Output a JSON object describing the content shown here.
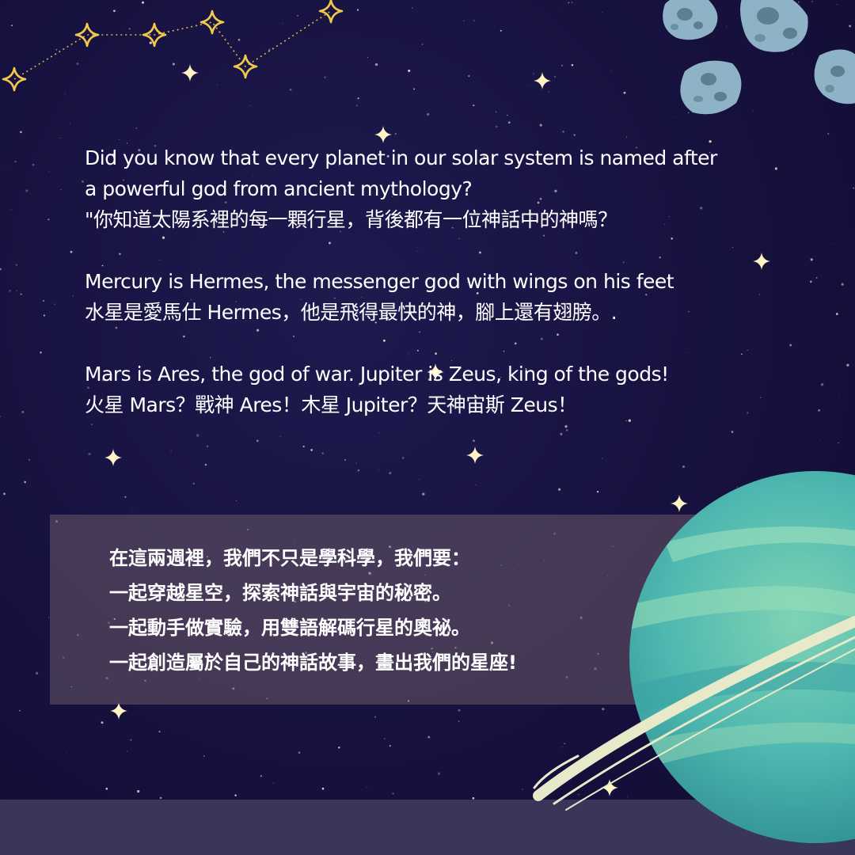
{
  "intro": {
    "line1": "Did you know that every planet in our solar system is named after",
    "line2": "a powerful god from ancient mythology?",
    "line3": "\"你知道太陽系裡的每一顆行星，背後都有一位神話中的神嗎？",
    "line4": " Mercury is Hermes, the messenger god with wings on his feet",
    "line5": "水星是愛馬仕 Hermes，他是飛得最快的神，腳上還有翅膀。.",
    "line6": " Mars is Ares, the god of war. Jupiter is Zeus, king of the gods!",
    "line7": "火星 Mars？戰神 Ares！木星 Jupiter？天神宙斯 Zeus！"
  },
  "panel": {
    "line1": "在這兩週裡，我們不只是學科學，我們要：",
    "line2": " 一起穿越星空，探索神話與宇宙的秘密。",
    "line3": " 一起動手做實驗，用雙語解碼行星的奧祕。",
    "line4": " 一起創造屬於自己的神話故事，畫出我們的星座!"
  },
  "colors": {
    "background": "#16113e",
    "star": "#fff6d6",
    "constellation": "#f2c94c",
    "planet": "#5fc0b0",
    "ring": "#e7e9c8",
    "asteroid": "#8fb3c6",
    "panel": "#7a646e",
    "band": "#3a3659"
  },
  "icons": {
    "constellation": "constellation-icon",
    "asteroids": "asteroid-icon",
    "planet": "ringed-planet-icon"
  }
}
